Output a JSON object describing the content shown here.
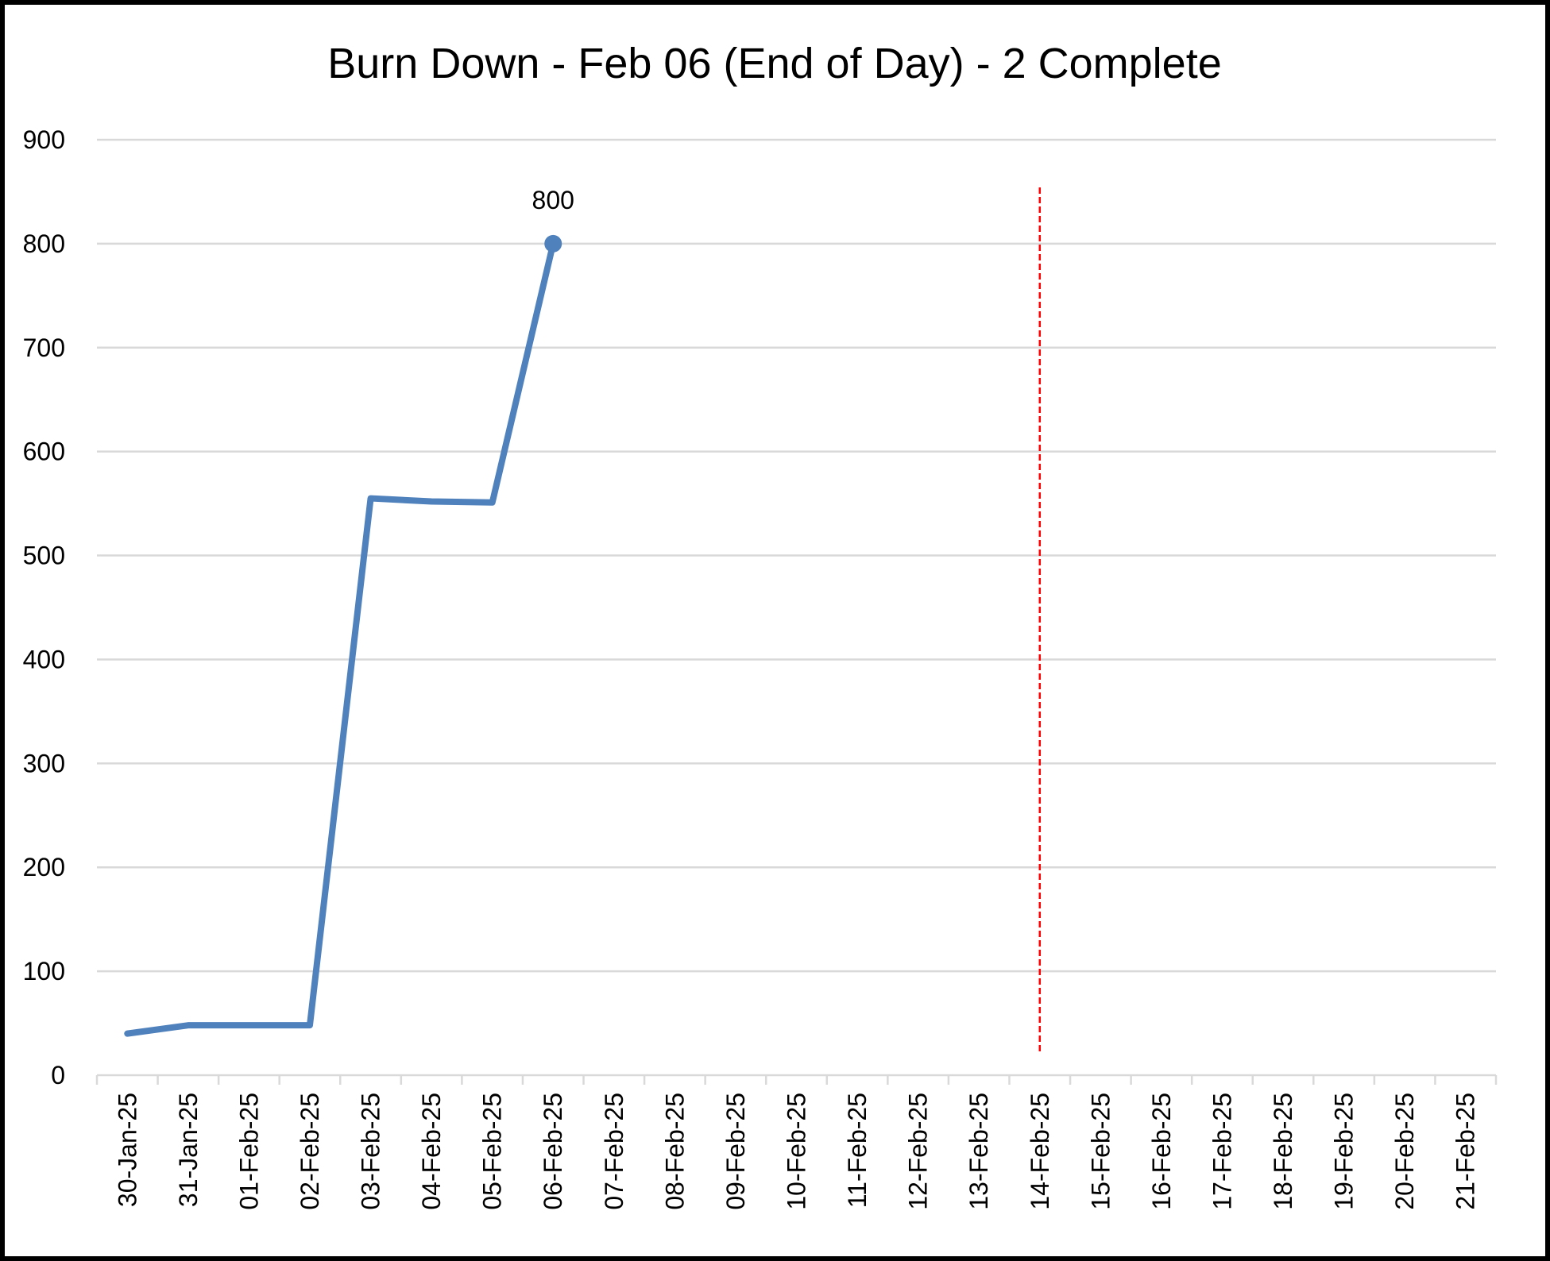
{
  "chart_data": {
    "type": "line",
    "title": "Burn Down - Feb 06 (End of Day) - 2 Complete",
    "xlabel": "",
    "ylabel": "",
    "ylim": [
      0,
      900
    ],
    "yticks": [
      0,
      100,
      200,
      300,
      400,
      500,
      600,
      700,
      800,
      900
    ],
    "grid": true,
    "legend": "none",
    "categories": [
      "30-Jan-25",
      "31-Jan-25",
      "01-Feb-25",
      "02-Feb-25",
      "03-Feb-25",
      "04-Feb-25",
      "05-Feb-25",
      "06-Feb-25",
      "07-Feb-25",
      "08-Feb-25",
      "09-Feb-25",
      "10-Feb-25",
      "11-Feb-25",
      "12-Feb-25",
      "13-Feb-25",
      "14-Feb-25",
      "15-Feb-25",
      "16-Feb-25",
      "17-Feb-25",
      "18-Feb-25",
      "19-Feb-25",
      "20-Feb-25",
      "21-Feb-25"
    ],
    "series": [
      {
        "values": [
          40,
          48,
          48,
          48,
          555,
          552,
          551,
          800,
          null,
          null,
          null,
          null,
          null,
          null,
          null,
          null,
          null,
          null,
          null,
          null,
          null,
          null,
          null
        ],
        "color": "#4F81BD",
        "data_labels": [
          {
            "category": "06-Feb-25",
            "text": "800"
          }
        ]
      }
    ],
    "reference_line": {
      "category": "14-Feb-25",
      "color": "#FF0000",
      "style": "dashed"
    }
  }
}
